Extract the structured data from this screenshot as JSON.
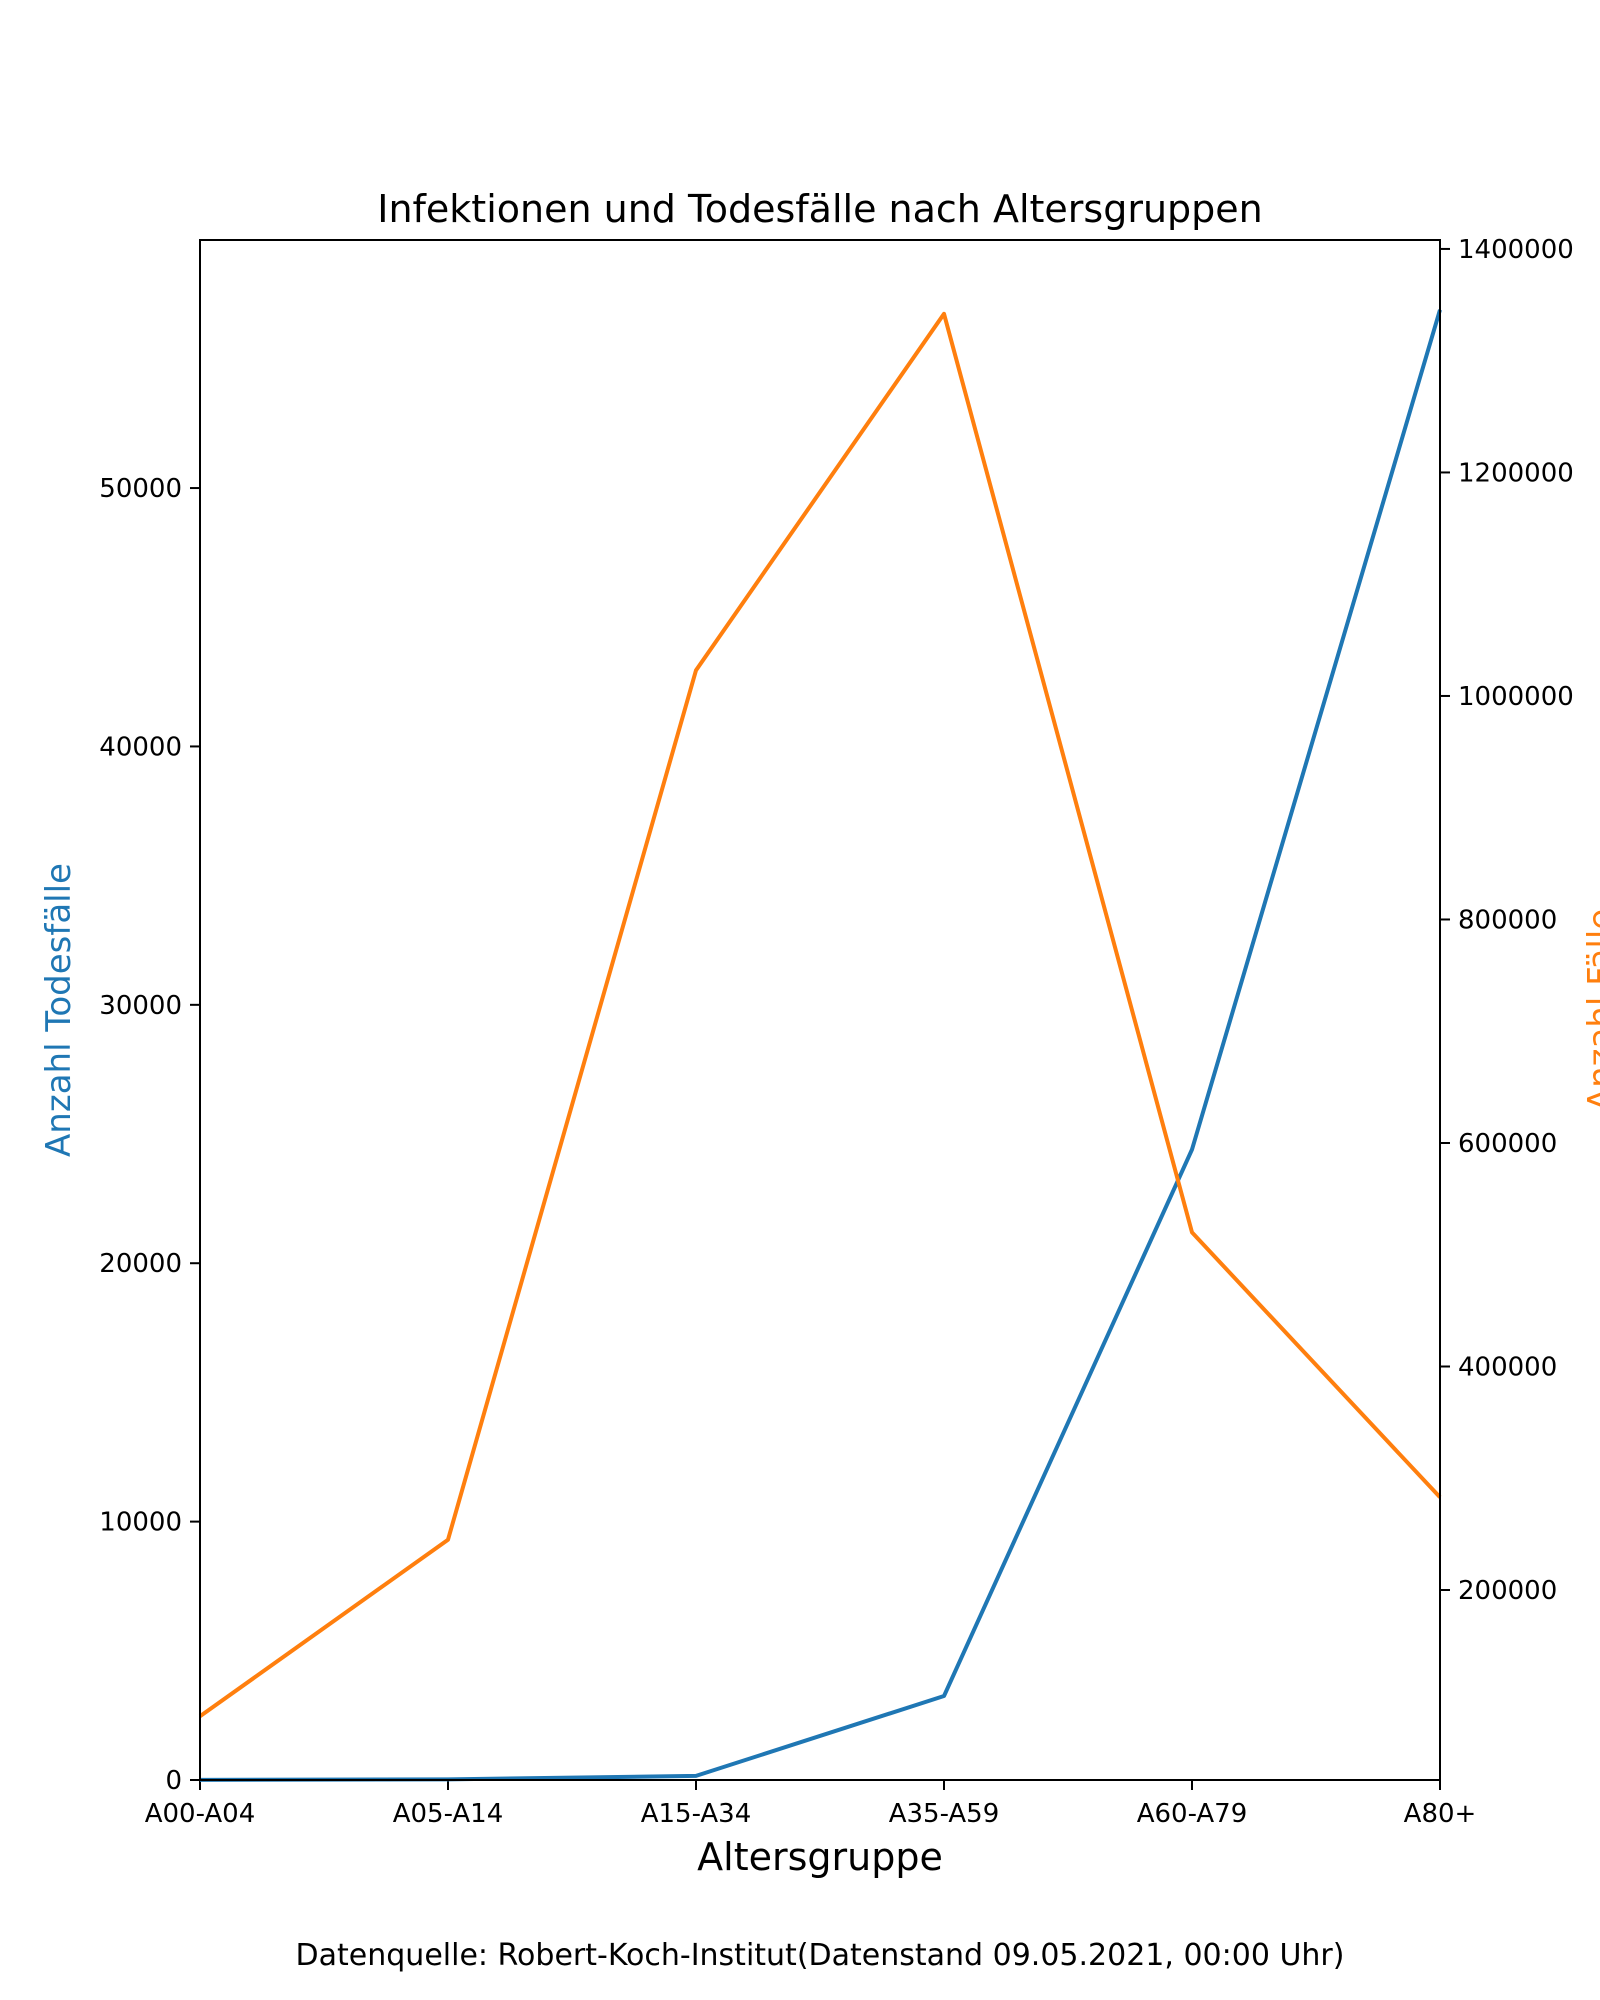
{
  "chart_data": {
    "type": "line",
    "title": "Infektionen und Todesfälle nach Altersgruppen",
    "xlabel": "Altersgruppe",
    "categories": [
      "A00-A04",
      "A05-A14",
      "A15-A34",
      "A35-A59",
      "A60-A79",
      "A80+"
    ],
    "axes": {
      "left": {
        "label": "Anzahl Todesfälle",
        "color": "#1f77b4",
        "ylim": [
          0,
          59600
        ],
        "ticks": [
          0,
          10000,
          20000,
          30000,
          40000,
          50000
        ]
      },
      "right": {
        "label": "Anzahl Fälle",
        "color": "#ff7f0e",
        "ylim": [
          30000,
          1408000
        ],
        "ticks": [
          200000,
          400000,
          600000,
          800000,
          1000000,
          1200000,
          1400000
        ]
      }
    },
    "series": [
      {
        "name": "Todesfälle",
        "axis": "left",
        "color": "#1f77b4",
        "values": [
          5,
          25,
          160,
          3250,
          24400,
          56900
        ]
      },
      {
        "name": "Fälle",
        "axis": "right",
        "color": "#ff7f0e",
        "values": [
          87000,
          245000,
          1023000,
          1342000,
          520000,
          283000
        ]
      }
    ],
    "grid": false
  },
  "footer": {
    "source": "Datenquelle: Robert-Koch-Institut(Datenstand 09.05.2021, 00:00 Uhr)"
  }
}
